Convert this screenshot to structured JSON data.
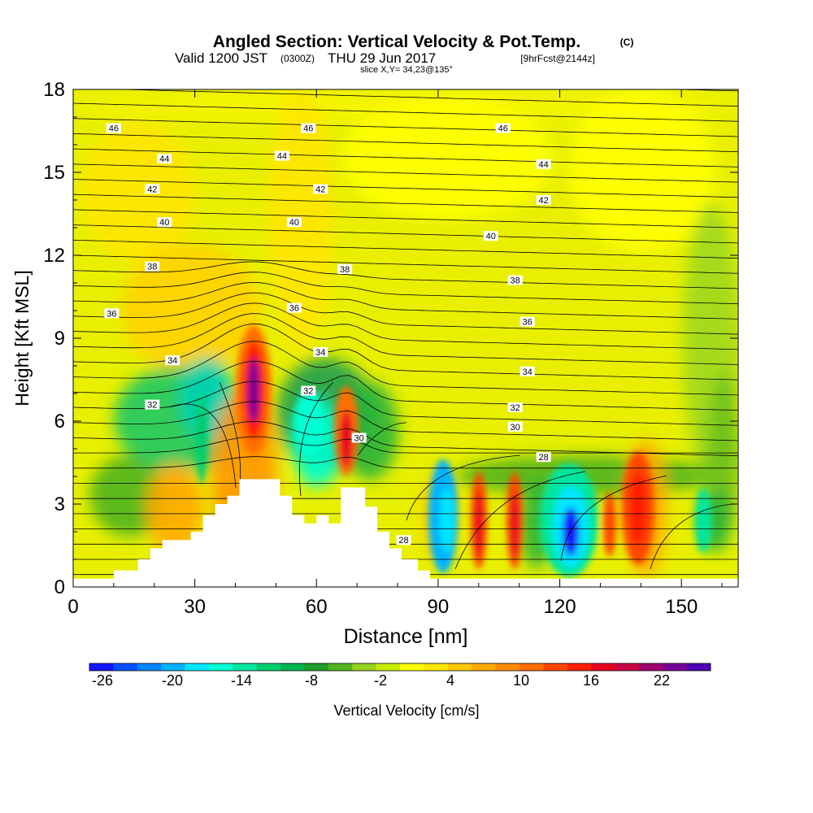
{
  "title": {
    "main": "Angled Section: Vertical Velocity & Pot.Temp.",
    "copyright": "(C)",
    "line2_a": "Valid 1200 JST",
    "line2_b": "(0300Z)",
    "line2_c": "THU 29 Jun 2017",
    "line2_d": "[9hrFcst@2144z]",
    "line3": "slice X,Y= 34,23@135°"
  },
  "chart_data": {
    "type": "contour",
    "xlabel": "Distance [nm]",
    "ylabel": "Height [Kft MSL]",
    "xlim": [
      0,
      164
    ],
    "ylim": [
      0,
      18
    ],
    "xticks": [
      0,
      30,
      60,
      90,
      120,
      150
    ],
    "yticks": [
      0,
      3,
      6,
      9,
      12,
      15,
      18
    ],
    "colorbar": {
      "label": "Vertical Velocity [cm/s]",
      "tick_labels": [
        "-26",
        "-20",
        "-14",
        "-8",
        "-2",
        "4",
        "10",
        "16",
        "22"
      ],
      "colors": [
        "#1414ff",
        "#0050ff",
        "#0082ff",
        "#00b4ff",
        "#00e6ff",
        "#00ffd2",
        "#00e6a0",
        "#00cd6e",
        "#00b450",
        "#1ea028",
        "#50b41e",
        "#96d21e",
        "#c8eb00",
        "#ffff00",
        "#ffe600",
        "#ffc800",
        "#ffaa00",
        "#ff8c00",
        "#ff6e00",
        "#ff4600",
        "#ff1e00",
        "#e6001e",
        "#c80046",
        "#a0006e",
        "#780096",
        "#5000b4"
      ]
    },
    "theta_labels": [
      {
        "x": 10,
        "y": 16.6,
        "t": "46"
      },
      {
        "x": 58,
        "y": 16.6,
        "t": "46"
      },
      {
        "x": 106,
        "y": 16.6,
        "t": "46"
      },
      {
        "x": 22.5,
        "y": 15.5,
        "t": "44"
      },
      {
        "x": 51.5,
        "y": 15.6,
        "t": "44"
      },
      {
        "x": 116,
        "y": 15.3,
        "t": "44"
      },
      {
        "x": 19.5,
        "y": 14.4,
        "t": "42"
      },
      {
        "x": 61,
        "y": 14.4,
        "t": "42"
      },
      {
        "x": 116,
        "y": 14.0,
        "t": "42"
      },
      {
        "x": 22.5,
        "y": 13.2,
        "t": "40"
      },
      {
        "x": 54.5,
        "y": 13.2,
        "t": "40"
      },
      {
        "x": 103,
        "y": 12.7,
        "t": "40"
      },
      {
        "x": 19.5,
        "y": 11.6,
        "t": "38"
      },
      {
        "x": 67,
        "y": 11.5,
        "t": "38"
      },
      {
        "x": 109,
        "y": 11.1,
        "t": "38"
      },
      {
        "x": 9.5,
        "y": 9.9,
        "t": "36"
      },
      {
        "x": 54.5,
        "y": 10.1,
        "t": "36"
      },
      {
        "x": 112,
        "y": 9.6,
        "t": "36"
      },
      {
        "x": 24.5,
        "y": 8.2,
        "t": "34"
      },
      {
        "x": 61,
        "y": 8.5,
        "t": "34"
      },
      {
        "x": 112,
        "y": 7.8,
        "t": "34"
      },
      {
        "x": 19.5,
        "y": 6.6,
        "t": "32"
      },
      {
        "x": 58,
        "y": 7.1,
        "t": "32"
      },
      {
        "x": 109,
        "y": 6.5,
        "t": "32"
      },
      {
        "x": 70.5,
        "y": 5.4,
        "t": "30"
      },
      {
        "x": 109,
        "y": 5.8,
        "t": "30"
      },
      {
        "x": 116,
        "y": 4.7,
        "t": "28"
      },
      {
        "x": 81.5,
        "y": 1.7,
        "t": "28"
      }
    ]
  }
}
